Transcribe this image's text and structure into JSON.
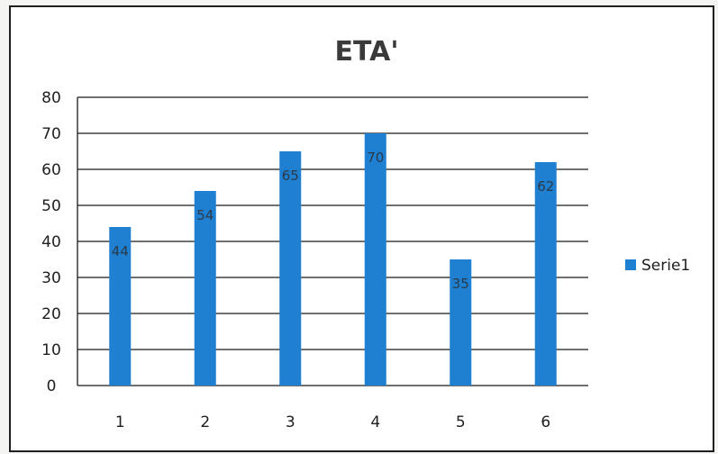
{
  "chart_data": {
    "type": "bar",
    "title": "ETA'",
    "categories": [
      "1",
      "2",
      "3",
      "4",
      "5",
      "6"
    ],
    "series": [
      {
        "name": "Serie1",
        "values": [
          44,
          54,
          65,
          70,
          35,
          62
        ],
        "color": "#1f7fd1"
      }
    ],
    "data_labels": [
      "44",
      "54",
      "65",
      "70",
      "35",
      "62"
    ],
    "y_ticks": [
      "0",
      "10",
      "20",
      "30",
      "40",
      "50",
      "60",
      "70",
      "80"
    ],
    "ylim": [
      0,
      80
    ],
    "grid": true,
    "legend": {
      "position": "right",
      "entries": [
        "Serie1"
      ]
    },
    "xlabel": "",
    "ylabel": ""
  }
}
